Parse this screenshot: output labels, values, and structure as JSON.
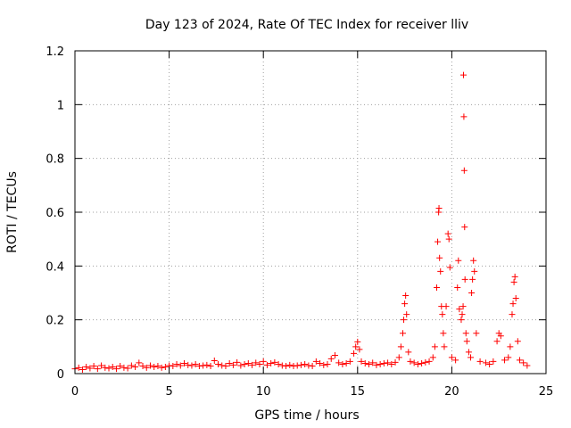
{
  "chart_data": {
    "type": "scatter",
    "title": "Day 123 of 2024, Rate Of TEC Index for receiver lliv",
    "xlabel": "GPS time / hours",
    "ylabel": "ROTI / TECUs",
    "xlim": [
      0,
      25
    ],
    "ylim": [
      0,
      1.2
    ],
    "xticks": [
      0,
      5,
      10,
      15,
      20,
      25
    ],
    "xtick_labels": [
      "0",
      "5",
      "10",
      "15",
      "20",
      "25"
    ],
    "yticks": [
      0,
      0.2,
      0.4,
      0.6,
      0.8,
      1.0,
      1.2
    ],
    "ytick_labels": [
      "0",
      "0.2",
      "0.4",
      "0.6",
      "0.8",
      "1",
      "1.2"
    ],
    "grid": true,
    "marker": "+",
    "color": "#ff0000",
    "series": [
      {
        "name": "ROTI",
        "points": [
          [
            0.0,
            0.018
          ],
          [
            0.2,
            0.022
          ],
          [
            0.4,
            0.015
          ],
          [
            0.6,
            0.025
          ],
          [
            0.8,
            0.02
          ],
          [
            1.0,
            0.028
          ],
          [
            1.2,
            0.018
          ],
          [
            1.4,
            0.03
          ],
          [
            1.6,
            0.022
          ],
          [
            1.8,
            0.02
          ],
          [
            2.0,
            0.025
          ],
          [
            2.2,
            0.018
          ],
          [
            2.4,
            0.028
          ],
          [
            2.6,
            0.022
          ],
          [
            2.8,
            0.02
          ],
          [
            3.0,
            0.03
          ],
          [
            3.2,
            0.025
          ],
          [
            3.4,
            0.04
          ],
          [
            3.6,
            0.028
          ],
          [
            3.8,
            0.022
          ],
          [
            4.0,
            0.03
          ],
          [
            4.2,
            0.025
          ],
          [
            4.4,
            0.028
          ],
          [
            4.6,
            0.022
          ],
          [
            4.8,
            0.025
          ],
          [
            5.0,
            0.03
          ],
          [
            5.2,
            0.028
          ],
          [
            5.4,
            0.035
          ],
          [
            5.6,
            0.03
          ],
          [
            5.8,
            0.038
          ],
          [
            6.0,
            0.032
          ],
          [
            6.2,
            0.03
          ],
          [
            6.4,
            0.035
          ],
          [
            6.6,
            0.028
          ],
          [
            6.8,
            0.03
          ],
          [
            7.0,
            0.032
          ],
          [
            7.2,
            0.028
          ],
          [
            7.4,
            0.048
          ],
          [
            7.6,
            0.035
          ],
          [
            7.8,
            0.03
          ],
          [
            8.0,
            0.028
          ],
          [
            8.2,
            0.038
          ],
          [
            8.4,
            0.032
          ],
          [
            8.6,
            0.042
          ],
          [
            8.8,
            0.03
          ],
          [
            9.0,
            0.035
          ],
          [
            9.2,
            0.038
          ],
          [
            9.4,
            0.032
          ],
          [
            9.6,
            0.04
          ],
          [
            9.8,
            0.035
          ],
          [
            10.0,
            0.045
          ],
          [
            10.2,
            0.032
          ],
          [
            10.4,
            0.038
          ],
          [
            10.6,
            0.042
          ],
          [
            10.8,
            0.035
          ],
          [
            11.0,
            0.03
          ],
          [
            11.2,
            0.028
          ],
          [
            11.4,
            0.032
          ],
          [
            11.6,
            0.028
          ],
          [
            11.8,
            0.03
          ],
          [
            12.0,
            0.032
          ],
          [
            12.2,
            0.035
          ],
          [
            12.4,
            0.03
          ],
          [
            12.6,
            0.028
          ],
          [
            12.8,
            0.045
          ],
          [
            13.0,
            0.038
          ],
          [
            13.2,
            0.032
          ],
          [
            13.4,
            0.035
          ],
          [
            13.6,
            0.055
          ],
          [
            13.8,
            0.068
          ],
          [
            14.0,
            0.04
          ],
          [
            14.2,
            0.035
          ],
          [
            14.4,
            0.038
          ],
          [
            14.6,
            0.045
          ],
          [
            14.8,
            0.075
          ],
          [
            14.9,
            0.1
          ],
          [
            15.0,
            0.118
          ],
          [
            15.1,
            0.09
          ],
          [
            15.2,
            0.045
          ],
          [
            15.4,
            0.038
          ],
          [
            15.6,
            0.035
          ],
          [
            15.8,
            0.04
          ],
          [
            16.0,
            0.032
          ],
          [
            16.2,
            0.035
          ],
          [
            16.4,
            0.038
          ],
          [
            16.6,
            0.04
          ],
          [
            16.8,
            0.035
          ],
          [
            17.0,
            0.042
          ],
          [
            17.2,
            0.06
          ],
          [
            17.3,
            0.1
          ],
          [
            17.4,
            0.15
          ],
          [
            17.45,
            0.2
          ],
          [
            17.5,
            0.26
          ],
          [
            17.55,
            0.29
          ],
          [
            17.6,
            0.22
          ],
          [
            17.7,
            0.08
          ],
          [
            17.8,
            0.045
          ],
          [
            18.0,
            0.04
          ],
          [
            18.2,
            0.035
          ],
          [
            18.4,
            0.038
          ],
          [
            18.6,
            0.042
          ],
          [
            18.8,
            0.045
          ],
          [
            19.0,
            0.06
          ],
          [
            19.1,
            0.1
          ],
          [
            19.2,
            0.32
          ],
          [
            19.25,
            0.49
          ],
          [
            19.3,
            0.6
          ],
          [
            19.32,
            0.615
          ],
          [
            19.35,
            0.43
          ],
          [
            19.4,
            0.38
          ],
          [
            19.45,
            0.25
          ],
          [
            19.5,
            0.22
          ],
          [
            19.55,
            0.15
          ],
          [
            19.6,
            0.1
          ],
          [
            19.7,
            0.25
          ],
          [
            19.8,
            0.52
          ],
          [
            19.85,
            0.5
          ],
          [
            19.9,
            0.395
          ],
          [
            20.0,
            0.06
          ],
          [
            20.2,
            0.05
          ],
          [
            20.3,
            0.32
          ],
          [
            20.35,
            0.42
          ],
          [
            20.4,
            0.24
          ],
          [
            20.5,
            0.2
          ],
          [
            20.55,
            0.22
          ],
          [
            20.6,
            0.25
          ],
          [
            20.62,
            1.11
          ],
          [
            20.64,
            0.955
          ],
          [
            20.66,
            0.755
          ],
          [
            20.68,
            0.545
          ],
          [
            20.7,
            0.35
          ],
          [
            20.75,
            0.15
          ],
          [
            20.8,
            0.12
          ],
          [
            20.9,
            0.08
          ],
          [
            21.0,
            0.06
          ],
          [
            21.05,
            0.3
          ],
          [
            21.1,
            0.35
          ],
          [
            21.15,
            0.42
          ],
          [
            21.2,
            0.38
          ],
          [
            21.3,
            0.15
          ],
          [
            21.5,
            0.045
          ],
          [
            21.8,
            0.04
          ],
          [
            22.0,
            0.035
          ],
          [
            22.2,
            0.045
          ],
          [
            22.4,
            0.12
          ],
          [
            22.5,
            0.15
          ],
          [
            22.6,
            0.14
          ],
          [
            22.8,
            0.05
          ],
          [
            23.0,
            0.06
          ],
          [
            23.1,
            0.1
          ],
          [
            23.2,
            0.22
          ],
          [
            23.25,
            0.26
          ],
          [
            23.3,
            0.34
          ],
          [
            23.35,
            0.36
          ],
          [
            23.4,
            0.28
          ],
          [
            23.5,
            0.12
          ],
          [
            23.6,
            0.05
          ],
          [
            23.8,
            0.04
          ],
          [
            24.0,
            0.03
          ]
        ]
      }
    ]
  }
}
